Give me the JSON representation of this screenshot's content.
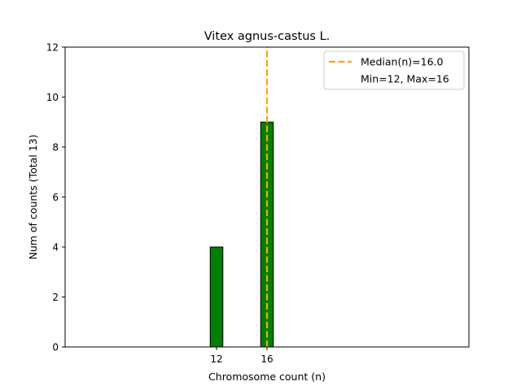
{
  "chart_data": {
    "type": "bar",
    "title": "Vitex agnus-castus L.",
    "xlabel": "Chromosome count (n)",
    "ylabel": "Num of counts      (Total 13)",
    "x": [
      12,
      16
    ],
    "values": [
      4,
      9
    ],
    "xlim": [
      0,
      32
    ],
    "ylim": [
      0,
      12
    ],
    "xticks": [
      "12",
      "16"
    ],
    "yticks": [
      "0",
      "2",
      "4",
      "6",
      "8",
      "10",
      "12"
    ],
    "bar_color": "#008000",
    "bar_edge_color": "#000000",
    "median": 16.0,
    "median_color": "#FFA500",
    "legend": {
      "position": "top-right",
      "entries": [
        "Median(n)=16.0",
        "Min=12, Max=16"
      ]
    },
    "grid": false
  }
}
